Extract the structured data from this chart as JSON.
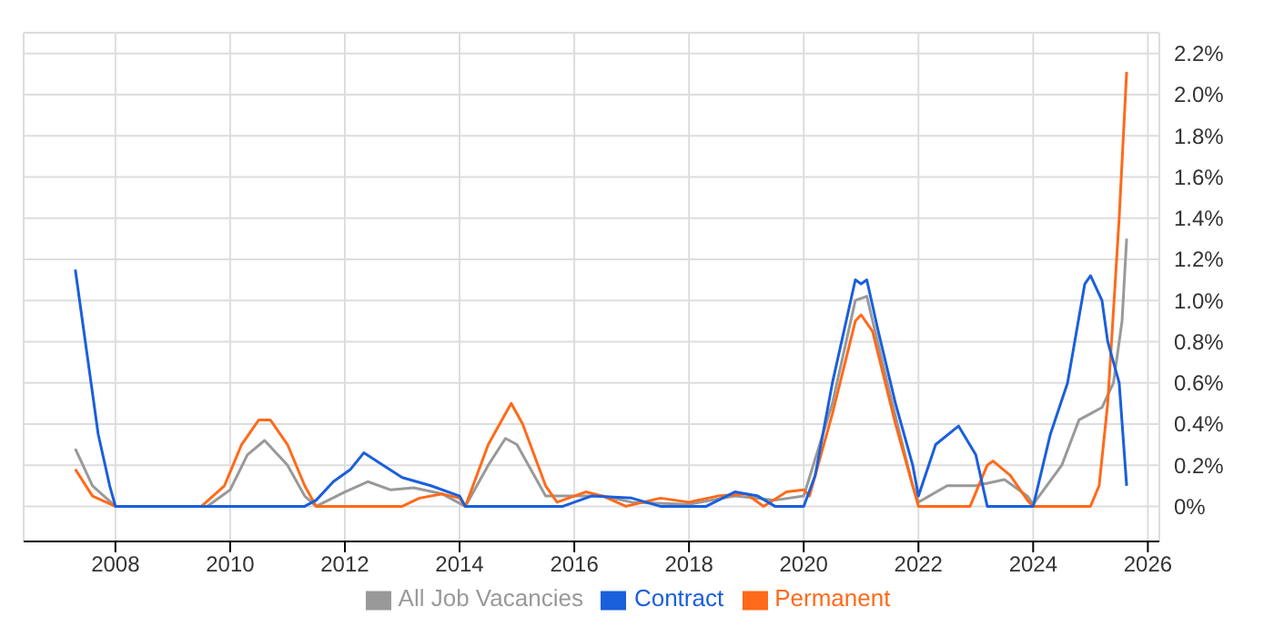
{
  "chart_data": {
    "type": "line",
    "xlim": [
      2006.4,
      2026.2
    ],
    "xticks": [
      2008,
      2010,
      2012,
      2014,
      2016,
      2018,
      2020,
      2022,
      2024,
      2026
    ],
    "ylim": [
      -0.17,
      2.3
    ],
    "yticks": [
      {
        "value": 0,
        "label": "0%"
      },
      {
        "value": 0.2,
        "label": "0.2%"
      },
      {
        "value": 0.4,
        "label": "0.4%"
      },
      {
        "value": 0.6,
        "label": "0.6%"
      },
      {
        "value": 0.8,
        "label": "0.8%"
      },
      {
        "value": 1.0,
        "label": "1.0%"
      },
      {
        "value": 1.2,
        "label": "1.2%"
      },
      {
        "value": 1.4,
        "label": "1.4%"
      },
      {
        "value": 1.6,
        "label": "1.6%"
      },
      {
        "value": 1.8,
        "label": "1.8%"
      },
      {
        "value": 2.0,
        "label": "2.0%"
      },
      {
        "value": 2.2,
        "label": "2.2%"
      }
    ],
    "grid": true,
    "legend": "bottom",
    "marker": "none",
    "line_style": "solid",
    "series": [
      {
        "name": "All Job Vacancies",
        "color": "#999999",
        "x": [
          2007.3,
          2007.6,
          2008,
          2009.6,
          2010.0,
          2010.3,
          2010.6,
          2011.0,
          2011.3,
          2011.5,
          2012.0,
          2012.4,
          2012.8,
          2013.2,
          2013.7,
          2014.1,
          2014.5,
          2014.8,
          2015.0,
          2015.5,
          2016.0,
          2016.5,
          2017.0,
          2018.0,
          2018.8,
          2019.5,
          2020.0,
          2020.5,
          2020.9,
          2021.1,
          2021.5,
          2021.9,
          2022.0,
          2022.5,
          2023.0,
          2023.5,
          2023.9,
          2024.0,
          2024.5,
          2024.8,
          2025.0,
          2025.2,
          2025.4,
          2025.55,
          2025.63
        ],
        "values": [
          0.28,
          0.1,
          0,
          0,
          0.08,
          0.25,
          0.32,
          0.2,
          0.05,
          0,
          0.07,
          0.12,
          0.08,
          0.09,
          0.06,
          0,
          0.2,
          0.33,
          0.3,
          0.05,
          0.05,
          0.05,
          0.02,
          0.01,
          0.05,
          0.03,
          0.05,
          0.5,
          1.0,
          1.02,
          0.55,
          0.1,
          0.02,
          0.1,
          0.1,
          0.13,
          0.05,
          0.01,
          0.2,
          0.42,
          0.45,
          0.48,
          0.6,
          0.9,
          1.3
        ]
      },
      {
        "name": "Permanent",
        "color": "#ff6a1a",
        "x": [
          2007.3,
          2007.6,
          2008,
          2009.5,
          2009.9,
          2010.2,
          2010.5,
          2010.7,
          2011.0,
          2011.3,
          2011.5,
          2013.0,
          2013.3,
          2013.7,
          2014.0,
          2014.1,
          2014.5,
          2014.8,
          2014.9,
          2015.1,
          2015.5,
          2015.7,
          2016.2,
          2016.5,
          2016.9,
          2017.5,
          2018.0,
          2018.5,
          2019.0,
          2019.3,
          2019.7,
          2020.0,
          2020.1,
          2020.5,
          2020.9,
          2021.0,
          2021.2,
          2021.6,
          2021.9,
          2022.0,
          2022.9,
          2023.2,
          2023.3,
          2023.6,
          2023.9,
          2024.0,
          2025.0,
          2025.15,
          2025.3,
          2025.5,
          2025.63
        ],
        "values": [
          0.18,
          0.05,
          0,
          0,
          0.1,
          0.3,
          0.42,
          0.42,
          0.3,
          0.1,
          0,
          0,
          0.04,
          0.06,
          0.04,
          0,
          0.3,
          0.45,
          0.5,
          0.4,
          0.1,
          0.02,
          0.07,
          0.05,
          0,
          0.04,
          0.02,
          0.05,
          0.06,
          0,
          0.07,
          0.08,
          0.05,
          0.45,
          0.9,
          0.93,
          0.85,
          0.4,
          0.1,
          0,
          0,
          0.2,
          0.22,
          0.15,
          0.03,
          0,
          0,
          0.1,
          0.5,
          1.4,
          2.11
        ]
      },
      {
        "name": "Contract",
        "color": "#1a5fdc",
        "x": [
          2007.3,
          2007.5,
          2007.7,
          2007.9,
          2008,
          2011.3,
          2011.5,
          2011.8,
          2012.1,
          2012.33,
          2013.0,
          2013.5,
          2014.0,
          2014.1,
          2015.8,
          2016.3,
          2017.0,
          2017.5,
          2018.3,
          2018.8,
          2019.2,
          2019.5,
          2020.0,
          2020.2,
          2020.5,
          2020.7,
          2020.9,
          2021.0,
          2021.1,
          2021.3,
          2021.6,
          2021.9,
          2022.0,
          2022.3,
          2022.7,
          2023.0,
          2023.2,
          2024.0,
          2024.3,
          2024.6,
          2024.9,
          2025.0,
          2025.2,
          2025.3,
          2025.5,
          2025.63
        ],
        "values": [
          1.15,
          0.75,
          0.35,
          0.1,
          0,
          0,
          0.03,
          0.12,
          0.18,
          0.26,
          0.14,
          0.1,
          0.05,
          0,
          0,
          0.05,
          0.04,
          0,
          0,
          0.07,
          0.05,
          0,
          0,
          0.15,
          0.6,
          0.85,
          1.1,
          1.08,
          1.1,
          0.85,
          0.5,
          0.2,
          0.05,
          0.3,
          0.39,
          0.25,
          0,
          0,
          0.35,
          0.6,
          1.08,
          1.12,
          1.0,
          0.8,
          0.6,
          0.1
        ]
      }
    ]
  }
}
